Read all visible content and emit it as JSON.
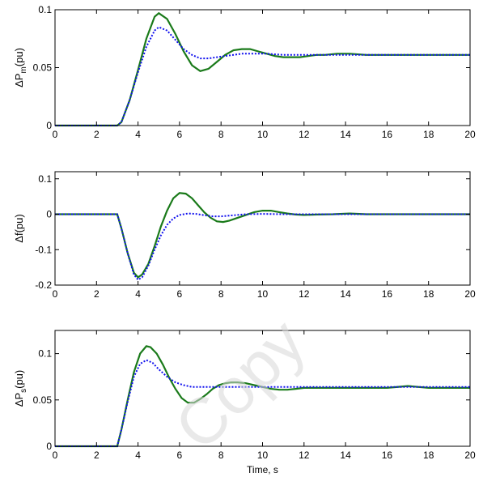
{
  "watermark": "Copy",
  "colors": {
    "solid": "#1a7a1a",
    "dotted": "#1010ee",
    "axes": "#000000"
  },
  "chart_data": [
    {
      "type": "line",
      "ylabel": "ΔP",
      "ylabel_sub": "m",
      "ylabel_unit": "(pu)",
      "xlim": [
        0,
        20
      ],
      "ylim": [
        0,
        0.1
      ],
      "xticks": [
        "0",
        "2",
        "4",
        "6",
        "8",
        "10",
        "12",
        "14",
        "16",
        "18",
        "20"
      ],
      "yticks": [
        {
          "v": 0,
          "t": "0"
        },
        {
          "v": 0.05,
          "t": "0.05"
        },
        {
          "v": 0.1,
          "t": "0.1"
        }
      ],
      "xlabel": "",
      "series": [
        {
          "style": "solid",
          "x": [
            0,
            3,
            3.2,
            3.6,
            4,
            4.4,
            4.8,
            5,
            5.4,
            5.8,
            6.2,
            6.6,
            7,
            7.4,
            7.8,
            8.2,
            8.6,
            9,
            9.4,
            9.8,
            10.2,
            10.6,
            11,
            11.4,
            11.8,
            12.2,
            12.6,
            13,
            13.6,
            14.2,
            15,
            20
          ],
          "y": [
            0,
            0,
            0.003,
            0.022,
            0.048,
            0.075,
            0.094,
            0.097,
            0.092,
            0.079,
            0.064,
            0.052,
            0.047,
            0.049,
            0.055,
            0.061,
            0.065,
            0.066,
            0.066,
            0.064,
            0.062,
            0.06,
            0.059,
            0.059,
            0.059,
            0.06,
            0.061,
            0.061,
            0.062,
            0.062,
            0.061,
            0.061
          ]
        },
        {
          "style": "dotted",
          "x": [
            0,
            3,
            3.2,
            3.6,
            4,
            4.4,
            4.8,
            5,
            5.4,
            5.8,
            6.2,
            6.6,
            7,
            7.4,
            7.8,
            8.2,
            8.6,
            9,
            9.6,
            10.2,
            11,
            12,
            14,
            20
          ],
          "y": [
            0,
            0,
            0.003,
            0.022,
            0.046,
            0.068,
            0.082,
            0.085,
            0.082,
            0.074,
            0.066,
            0.061,
            0.058,
            0.058,
            0.059,
            0.06,
            0.061,
            0.062,
            0.062,
            0.062,
            0.061,
            0.061,
            0.061,
            0.061
          ]
        }
      ]
    },
    {
      "type": "line",
      "ylabel": "Δf(pu)",
      "ylabel_sub": "",
      "ylabel_unit": "",
      "xlim": [
        0,
        20
      ],
      "ylim": [
        -0.2,
        0.12
      ],
      "xticks": [
        "0",
        "2",
        "4",
        "6",
        "8",
        "10",
        "12",
        "14",
        "16",
        "18",
        "20"
      ],
      "yticks": [
        {
          "v": -0.2,
          "t": "-0.2"
        },
        {
          "v": -0.1,
          "t": "-0.1"
        },
        {
          "v": 0,
          "t": "0"
        },
        {
          "v": 0.1,
          "t": "0.1"
        }
      ],
      "xlabel": "",
      "series": [
        {
          "style": "solid",
          "x": [
            0,
            3,
            3.2,
            3.5,
            3.8,
            4,
            4.2,
            4.5,
            4.8,
            5.1,
            5.4,
            5.7,
            6,
            6.3,
            6.6,
            6.9,
            7.2,
            7.5,
            7.8,
            8.1,
            8.4,
            8.8,
            9.2,
            9.6,
            10,
            10.4,
            10.8,
            11.2,
            11.6,
            12,
            12.6,
            13.4,
            14.2,
            15,
            20
          ],
          "y": [
            0,
            0,
            -0.04,
            -0.11,
            -0.165,
            -0.178,
            -0.17,
            -0.14,
            -0.09,
            -0.035,
            0.01,
            0.045,
            0.06,
            0.058,
            0.045,
            0.025,
            0.005,
            -0.01,
            -0.02,
            -0.022,
            -0.018,
            -0.01,
            -0.002,
            0.006,
            0.01,
            0.01,
            0.006,
            0.002,
            -0.001,
            -0.002,
            -0.001,
            0,
            0.002,
            0,
            0
          ]
        },
        {
          "style": "dotted",
          "x": [
            0,
            3,
            3.2,
            3.5,
            3.8,
            4,
            4.2,
            4.5,
            4.8,
            5.1,
            5.4,
            5.7,
            6,
            6.4,
            6.8,
            7.2,
            7.6,
            8,
            8.6,
            9.2,
            10,
            11,
            12,
            20
          ],
          "y": [
            0,
            0,
            -0.04,
            -0.11,
            -0.17,
            -0.185,
            -0.178,
            -0.145,
            -0.1,
            -0.06,
            -0.03,
            -0.012,
            -0.002,
            0.002,
            0.001,
            -0.003,
            -0.006,
            -0.006,
            -0.003,
            0,
            0.001,
            0,
            0,
            0
          ]
        }
      ]
    },
    {
      "type": "line",
      "ylabel": "ΔP",
      "ylabel_sub": "s",
      "ylabel_unit": "(pu)",
      "xlim": [
        0,
        20
      ],
      "ylim": [
        0,
        0.125
      ],
      "xticks": [
        "0",
        "2",
        "4",
        "6",
        "8",
        "10",
        "12",
        "14",
        "16",
        "18",
        "20"
      ],
      "yticks": [
        {
          "v": 0,
          "t": "0"
        },
        {
          "v": 0.05,
          "t": "0.05"
        },
        {
          "v": 0.1,
          "t": "0.1"
        }
      ],
      "xlabel": "Time, s",
      "series": [
        {
          "style": "solid",
          "x": [
            0,
            3,
            3.2,
            3.5,
            3.8,
            4.1,
            4.4,
            4.6,
            4.9,
            5.2,
            5.5,
            5.8,
            6.1,
            6.4,
            6.7,
            7,
            7.3,
            7.6,
            7.9,
            8.2,
            8.5,
            8.8,
            9.2,
            9.6,
            10,
            10.4,
            10.8,
            11.2,
            11.6,
            12,
            13,
            14,
            15,
            16,
            17,
            18,
            20
          ],
          "y": [
            0,
            0,
            0.018,
            0.05,
            0.08,
            0.1,
            0.108,
            0.107,
            0.1,
            0.088,
            0.074,
            0.062,
            0.052,
            0.047,
            0.047,
            0.051,
            0.056,
            0.062,
            0.066,
            0.068,
            0.069,
            0.069,
            0.068,
            0.066,
            0.064,
            0.062,
            0.061,
            0.061,
            0.062,
            0.063,
            0.063,
            0.063,
            0.063,
            0.063,
            0.065,
            0.063,
            0.063
          ]
        },
        {
          "style": "dotted",
          "x": [
            0,
            3,
            3.2,
            3.5,
            3.8,
            4.1,
            4.4,
            4.7,
            5,
            5.4,
            5.8,
            6.2,
            6.6,
            7,
            7.5,
            8,
            8.5,
            9,
            9.5,
            10,
            11,
            12,
            14,
            20
          ],
          "y": [
            0,
            0,
            0.018,
            0.048,
            0.075,
            0.089,
            0.093,
            0.09,
            0.083,
            0.075,
            0.069,
            0.066,
            0.064,
            0.064,
            0.064,
            0.064,
            0.064,
            0.064,
            0.064,
            0.064,
            0.064,
            0.064,
            0.064,
            0.064
          ]
        }
      ]
    }
  ]
}
